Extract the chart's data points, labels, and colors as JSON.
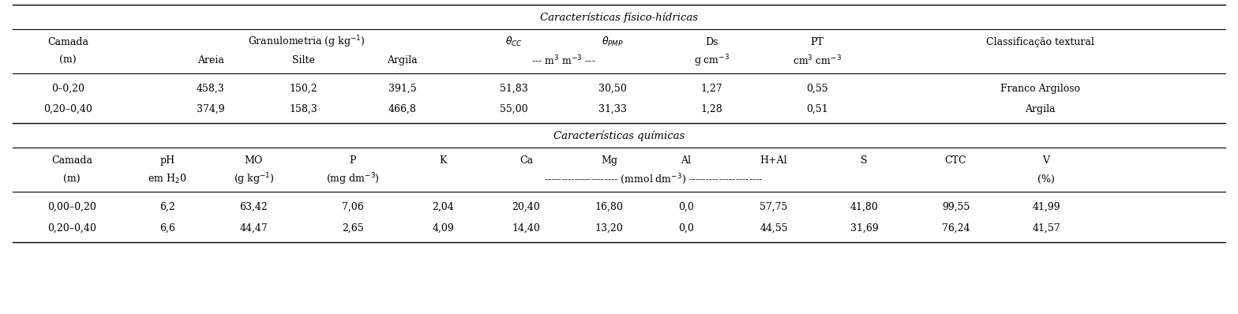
{
  "fig_width": 15.68,
  "fig_height": 3.98,
  "dpi": 100,
  "background_color": "#ffffff",
  "font_family": "serif",
  "font_size": 9.0,
  "section1_title": "Características físico-hídricas",
  "section2_title": "Características químicas",
  "data1": [
    [
      "0–0,20",
      "458,3",
      "150,2",
      "391,5",
      "51,83",
      "30,50",
      "1,27",
      "0,55",
      "Franco Argiloso"
    ],
    [
      "0,20–0,40",
      "374,9",
      "158,3",
      "466,8",
      "55,00",
      "31,33",
      "1,28",
      "0,51",
      "Argila"
    ]
  ],
  "data2": [
    [
      "0,00–0,20",
      "6,2",
      "63,42",
      "7,06",
      "2,04",
      "20,40",
      "16,80",
      "0,0",
      "57,75",
      "41,80",
      "99,55",
      "41,99"
    ],
    [
      "0,20–0,40",
      "6,6",
      "44,47",
      "2,65",
      "4,09",
      "14,40",
      "13,20",
      "0,0",
      "44,55",
      "31,69",
      "76,24",
      "41,57"
    ]
  ]
}
